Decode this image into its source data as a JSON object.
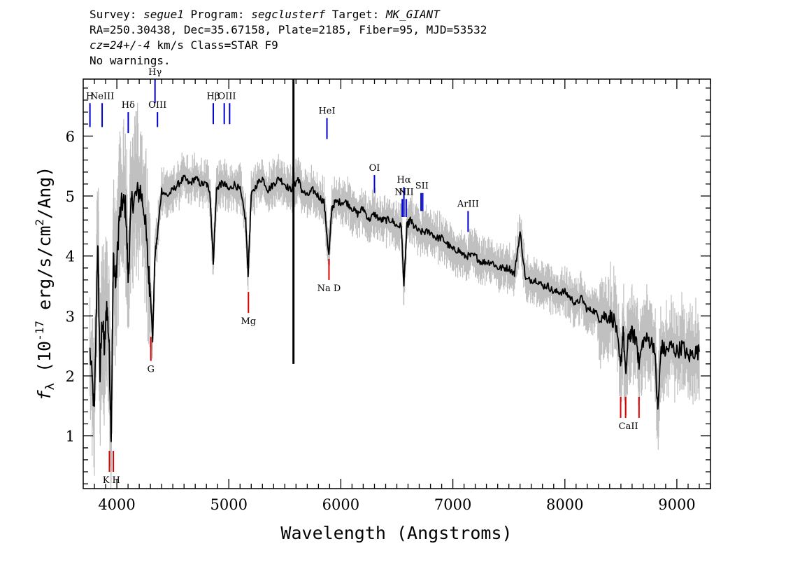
{
  "header": {
    "line1": {
      "survey_label": "Survey: ",
      "survey": "segue1",
      "program_label": " Program: ",
      "program": "segclusterf",
      "target_label": " Target: ",
      "target": "MK_GIANT"
    },
    "line2": "RA=250.30438, Dec=35.67158, Plate=2185, Fiber=95, MJD=53532",
    "line3": {
      "cz": "cz=24+/-4",
      "rest": " km/s Class=STAR F9"
    },
    "line4": "No warnings."
  },
  "colors": {
    "flux": "#000000",
    "error_band": "#c0c0c0",
    "emission": "#0000cc",
    "absorption": "#dd0000"
  },
  "chart_data": {
    "type": "line",
    "xlabel": "Wavelength (Angstroms)",
    "ylabel_parts": {
      "f": "f",
      "sub": "λ",
      "a": " (10",
      "exp1": "-17",
      "b": " erg/s/cm",
      "exp2": "2",
      "c": "/Ang)"
    },
    "xlim": [
      3700,
      9300
    ],
    "ylim": [
      0.12,
      6.95
    ],
    "x_ticks": [
      4000,
      5000,
      6000,
      7000,
      8000,
      9000
    ],
    "x_tick_labels": [
      "4000",
      "5000",
      "6000",
      "7000",
      "8000",
      "9000"
    ],
    "y_ticks": [
      1,
      2,
      3,
      4,
      5,
      6
    ],
    "y_tick_labels": [
      "1",
      "2",
      "3",
      "4",
      "5",
      "6"
    ],
    "series": [
      {
        "role": "flux",
        "x": [
          3760,
          3800,
          3830,
          3850,
          3870,
          3890,
          3910,
          3930,
          3950,
          3970,
          3990,
          4020,
          4050,
          4080,
          4101,
          4130,
          4170,
          4210,
          4250,
          4280,
          4300,
          4320,
          4340,
          4360,
          4400,
          4450,
          4500,
          4550,
          4600,
          4650,
          4700,
          4750,
          4800,
          4830,
          4861,
          4890,
          4920,
          4960,
          5000,
          5050,
          5100,
          5150,
          5172,
          5200,
          5250,
          5300,
          5350,
          5400,
          5450,
          5500,
          5550,
          5590,
          5620,
          5650,
          5700,
          5750,
          5800,
          5850,
          5893,
          5920,
          5950,
          6000,
          6050,
          6100,
          6150,
          6200,
          6250,
          6300,
          6350,
          6400,
          6450,
          6500,
          6540,
          6563,
          6590,
          6620,
          6650,
          6700,
          6750,
          6800,
          6850,
          6900,
          6950,
          7000,
          7050,
          7100,
          7150,
          7200,
          7250,
          7300,
          7350,
          7400,
          7450,
          7500,
          7550,
          7600,
          7650,
          7700,
          7750,
          7800,
          7850,
          7900,
          7950,
          8000,
          8050,
          8100,
          8150,
          8200,
          8250,
          8300,
          8350,
          8400,
          8450,
          8498,
          8520,
          8542,
          8570,
          8600,
          8640,
          8662,
          8700,
          8750,
          8800,
          8830,
          8860,
          8900,
          8950,
          9000,
          9050,
          9100,
          9150,
          9200
        ],
        "y": [
          2.4,
          1.4,
          4.3,
          2.0,
          3.0,
          2.4,
          3.2,
          2.6,
          1.0,
          4.0,
          3.5,
          4.6,
          4.9,
          4.8,
          3.6,
          4.9,
          5.0,
          5.1,
          4.7,
          3.8,
          3.4,
          2.6,
          4.0,
          4.3,
          5.1,
          5.0,
          5.1,
          5.2,
          5.3,
          5.2,
          5.3,
          5.2,
          5.2,
          5.1,
          3.9,
          5.1,
          5.2,
          5.2,
          5.1,
          5.2,
          5.1,
          4.6,
          3.7,
          5.0,
          5.2,
          5.3,
          5.1,
          5.2,
          5.3,
          5.2,
          5.1,
          5.2,
          5.3,
          5.1,
          5.0,
          5.1,
          5.0,
          4.9,
          4.0,
          4.8,
          4.9,
          4.9,
          4.9,
          4.8,
          4.7,
          4.8,
          4.6,
          4.7,
          4.6,
          4.6,
          4.6,
          4.5,
          4.5,
          3.5,
          4.5,
          4.6,
          4.5,
          4.4,
          4.4,
          4.4,
          4.3,
          4.3,
          4.2,
          4.1,
          4.1,
          4.0,
          4.0,
          4.0,
          3.9,
          3.9,
          3.9,
          3.8,
          3.8,
          3.8,
          3.7,
          4.4,
          3.6,
          3.6,
          3.6,
          3.5,
          3.5,
          3.4,
          3.4,
          3.4,
          3.3,
          3.2,
          3.3,
          3.1,
          3.1,
          3.0,
          3.0,
          3.0,
          2.9,
          2.1,
          2.8,
          2.0,
          2.7,
          2.7,
          2.6,
          2.2,
          2.6,
          2.6,
          2.5,
          1.4,
          2.5,
          2.4,
          2.5,
          2.4,
          2.5,
          2.3,
          2.4,
          2.4
        ]
      }
    ],
    "spike": {
      "x": 5577,
      "y_top": 6.95,
      "y_bottom": 2.2
    },
    "emission_lines": [
      {
        "label": "H",
        "x": [
          3760
        ],
        "y_top": 6.55,
        "y_bottom": 6.15
      },
      {
        "label": "NeIII",
        "x": [
          3869
        ],
        "y_top": 6.55,
        "y_bottom": 6.15
      },
      {
        "label": "Hδ",
        "x": [
          4102
        ],
        "y_top": 6.4,
        "y_bottom": 6.05
      },
      {
        "label": "Hγ",
        "x": [
          4341
        ],
        "y_top": 6.95,
        "y_bottom": 6.55
      },
      {
        "label": "OIII",
        "x": [
          4363
        ],
        "y_top": 6.4,
        "y_bottom": 6.15
      },
      {
        "label": "Hβ",
        "x": [
          4861
        ],
        "y_top": 6.55,
        "y_bottom": 6.2
      },
      {
        "label": "OIII",
        "x": [
          4959,
          5007
        ],
        "y_top": 6.55,
        "y_bottom": 6.2
      },
      {
        "label": "HeI",
        "x": [
          5876
        ],
        "y_top": 6.3,
        "y_bottom": 5.95
      },
      {
        "label": "OI",
        "x": [
          6300
        ],
        "y_top": 5.35,
        "y_bottom": 5.05
      },
      {
        "label": "NII",
        "x": [
          6548
        ],
        "y_top": 4.95,
        "y_bottom": 4.65
      },
      {
        "label": "Hα",
        "x": [
          6563
        ],
        "y_top": 5.15,
        "y_bottom": 4.65
      },
      {
        "label": "NII",
        "x": [
          6583
        ],
        "y_top": 4.95,
        "y_bottom": 4.65
      },
      {
        "label": "SII",
        "x": [
          6716,
          6731
        ],
        "y_top": 5.05,
        "y_bottom": 4.75
      },
      {
        "label": "ArIII",
        "x": [
          7136
        ],
        "y_top": 4.75,
        "y_bottom": 4.4
      }
    ],
    "absorption_lines": [
      {
        "label": "K H",
        "x": [
          3934,
          3969
        ],
        "y_top": 0.75,
        "y_bottom": 0.4
      },
      {
        "label": "G",
        "x": [
          4304
        ],
        "y_top": 2.65,
        "y_bottom": 2.25
      },
      {
        "label": "Mg",
        "x": [
          5175
        ],
        "y_top": 3.4,
        "y_bottom": 3.05
      },
      {
        "label": "Na D",
        "x": [
          5894
        ],
        "y_top": 3.95,
        "y_bottom": 3.6
      },
      {
        "label": "CaII",
        "x": [
          8498,
          8542,
          8662
        ],
        "y_top": 1.65,
        "y_bottom": 1.3
      }
    ]
  }
}
